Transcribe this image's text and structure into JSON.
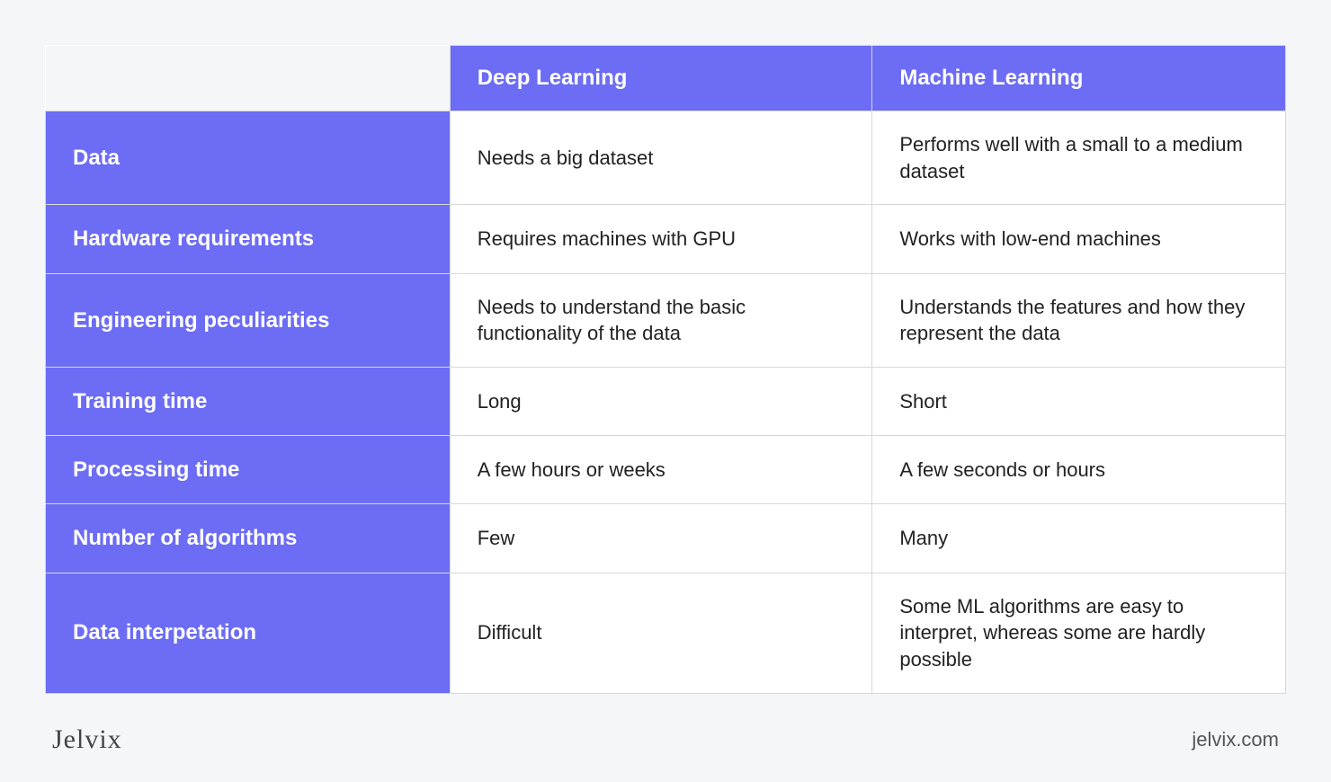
{
  "table": {
    "columns": [
      "Deep Learning",
      "Machine Learning"
    ],
    "rows": [
      {
        "label": "Data",
        "dl": "Needs a big dataset",
        "ml": "Performs well with a small to a medium dataset"
      },
      {
        "label": "Hardware requirements",
        "dl": "Requires machines with GPU",
        "ml": "Works with low-end machines"
      },
      {
        "label": "Engineering peculiarities",
        "dl": "Needs to understand the basic functionality of the data",
        "ml": "Understands the features and how they represent the data"
      },
      {
        "label": "Training time",
        "dl": "Long",
        "ml": "Short"
      },
      {
        "label": "Processing time",
        "dl": "A few hours or weeks",
        "ml": "A few seconds or hours"
      },
      {
        "label": "Number of algorithms",
        "dl": "Few",
        "ml": "Many"
      },
      {
        "label": "Data interpetation",
        "dl": "Difficult",
        "ml": "Some ML algorithms are easy to interpret, whereas some are hardly possible"
      }
    ],
    "header_bg": "#6c6cf4",
    "header_fg": "#ffffff",
    "cell_bg": "#ffffff",
    "cell_fg": "#222222",
    "border_color": "#d8d8d8",
    "page_bg": "#f5f6f8",
    "header_fontsize": 24,
    "cell_fontsize": 22
  },
  "footer": {
    "brand": "Jelvix",
    "url": "jelvix.com"
  }
}
